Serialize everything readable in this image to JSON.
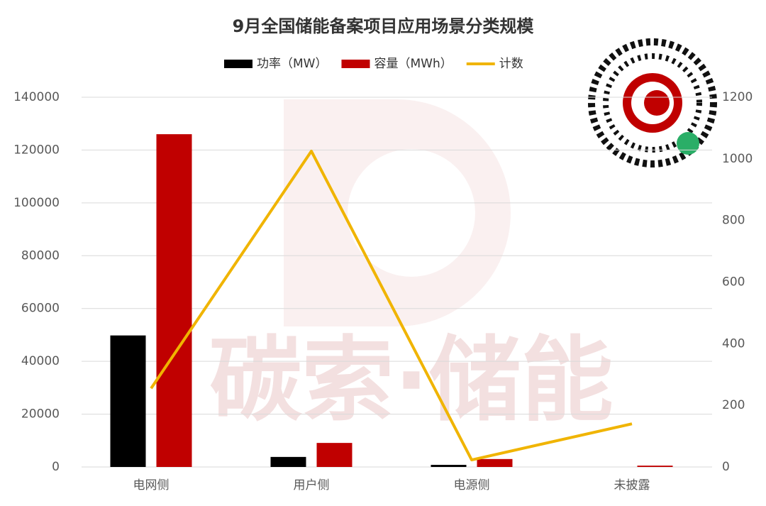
{
  "chart_data": {
    "type": "bar-line",
    "title": "9月全国储能备案项目应用场景分类规模",
    "watermark": "碳索·储能",
    "categories": [
      "电网侧",
      "用户侧",
      "电源侧",
      "未披露"
    ],
    "series": [
      {
        "name": "功率（MW）",
        "color": "#000000",
        "type": "bar",
        "values": [
          49800,
          3800,
          800,
          0
        ]
      },
      {
        "name": "容量（MWh）",
        "color": "#c00000",
        "type": "bar",
        "values": [
          126000,
          9100,
          3000,
          500
        ]
      },
      {
        "name": "计数",
        "color": "#f0b400",
        "type": "line",
        "axis": "y2",
        "values": [
          255,
          1025,
          23,
          140
        ]
      }
    ],
    "ylim": [
      0,
      140000
    ],
    "yticks": [
      0,
      20000,
      40000,
      60000,
      80000,
      100000,
      120000,
      140000
    ],
    "y2lim": [
      0,
      1200
    ],
    "y2ticks": [
      0,
      200,
      400,
      600,
      800,
      1000,
      1200
    ],
    "grid": true,
    "legend": "top"
  }
}
